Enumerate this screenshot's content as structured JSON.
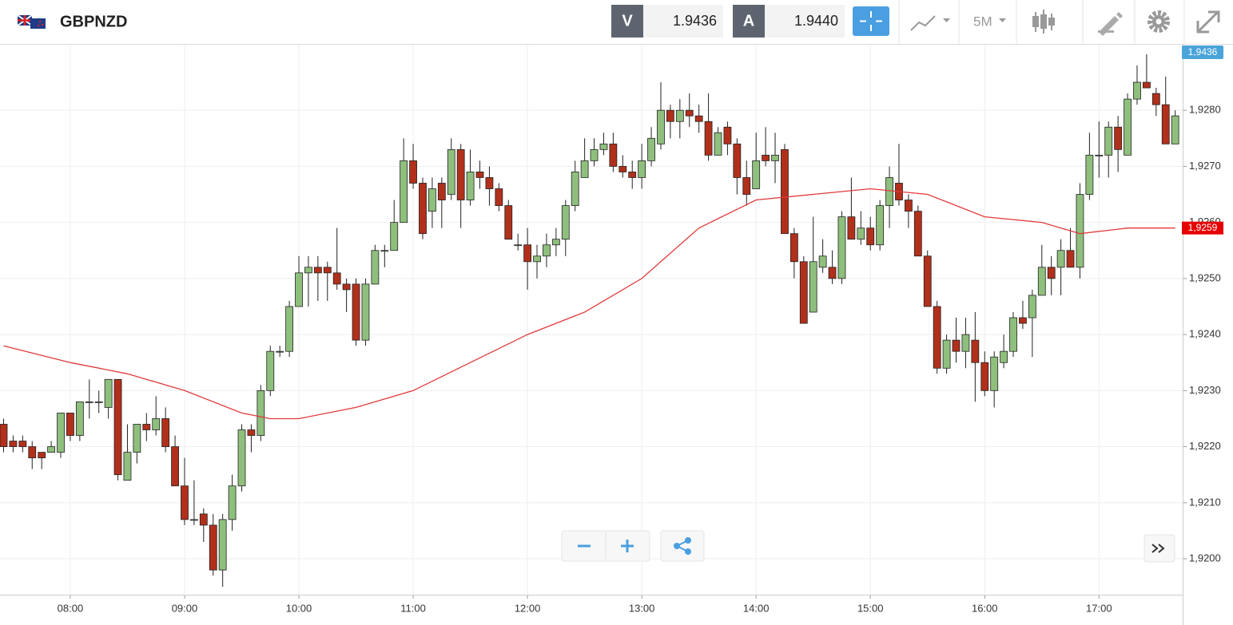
{
  "header": {
    "symbol": "GBPNZD",
    "bid_label": "V",
    "bid": "1.9436",
    "ask_label": "A",
    "ask": "1.9440",
    "timeframe": "5M"
  },
  "chart_data": {
    "type": "candlestick",
    "x": [
      "07:25",
      "07:30",
      "07:35",
      "07:40",
      "07:45",
      "07:50",
      "07:55",
      "08:00",
      "08:05",
      "08:10",
      "08:15",
      "08:20",
      "08:25",
      "08:30",
      "08:35",
      "08:40",
      "08:45",
      "08:50",
      "08:55",
      "09:00",
      "09:05",
      "09:10",
      "09:15",
      "09:20",
      "09:25",
      "09:30",
      "09:35",
      "09:40",
      "09:45",
      "09:50",
      "09:55",
      "10:00",
      "10:05",
      "10:10",
      "10:15",
      "10:20",
      "10:25",
      "10:30",
      "10:35",
      "10:40",
      "10:45",
      "10:50",
      "10:55",
      "11:00",
      "11:05",
      "11:10",
      "11:15",
      "11:20",
      "11:25",
      "11:30",
      "11:35",
      "11:40",
      "11:45",
      "11:50",
      "11:55",
      "12:00",
      "12:05",
      "12:10",
      "12:15",
      "12:20",
      "12:25",
      "12:30",
      "12:35",
      "12:40",
      "12:45",
      "12:50",
      "12:55",
      "13:00",
      "13:05",
      "13:10",
      "13:15",
      "13:20",
      "13:25",
      "13:30",
      "13:35",
      "13:40",
      "13:45",
      "13:50",
      "13:55",
      "14:00",
      "14:05",
      "14:10",
      "14:15",
      "14:20",
      "14:25",
      "14:30",
      "14:35",
      "14:40",
      "14:45",
      "14:50",
      "14:55",
      "15:00",
      "15:05",
      "15:10",
      "15:15",
      "15:20",
      "15:25",
      "15:30",
      "15:35",
      "15:40",
      "15:45",
      "15:50",
      "15:55",
      "16:00",
      "16:05",
      "16:10",
      "16:15",
      "16:20",
      "16:25",
      "16:30",
      "16:35",
      "16:40",
      "16:45",
      "16:50",
      "16:55",
      "17:00",
      "17:05",
      "17:10",
      "17:15",
      "17:20",
      "17:25",
      "17:30",
      "17:35",
      "17:40"
    ],
    "open": [
      1.9224,
      1.9221,
      1.9221,
      1.922,
      1.9219,
      1.9219,
      1.9219,
      1.9226,
      1.9222,
      1.9228,
      1.9228,
      1.9227,
      1.9232,
      1.9214,
      1.9219,
      1.9224,
      1.9223,
      1.9225,
      1.922,
      1.9213,
      1.9207,
      1.9208,
      1.9206,
      1.9198,
      1.9207,
      1.9213,
      1.9223,
      1.9222,
      1.923,
      1.9237,
      1.9237,
      1.9245,
      1.9251,
      1.9252,
      1.9252,
      1.9251,
      1.9249,
      1.9249,
      1.9239,
      1.9249,
      1.9255,
      1.9255,
      1.926,
      1.9271,
      1.9267,
      1.9262,
      1.9267,
      1.9265,
      1.9273,
      1.9264,
      1.9269,
      1.9268,
      1.9266,
      1.9263,
      1.9256,
      1.9256,
      1.9253,
      1.9254,
      1.9256,
      1.9257,
      1.9263,
      1.9268,
      1.9271,
      1.9273,
      1.9274,
      1.927,
      1.9269,
      1.9268,
      1.9271,
      1.9274,
      1.928,
      1.9278,
      1.928,
      1.9279,
      1.9278,
      1.9272,
      1.9277,
      1.9274,
      1.9268,
      1.9266,
      1.9272,
      1.9271,
      1.9273,
      1.9258,
      1.9253,
      1.9244,
      1.9252,
      1.9252,
      1.925,
      1.9261,
      1.9257,
      1.9259,
      1.9256,
      1.9263,
      1.9267,
      1.9264,
      1.9262,
      1.9254,
      1.9245,
      1.9234,
      1.9239,
      1.9237,
      1.9239,
      1.9235,
      1.923,
      1.9235,
      1.9237,
      1.9243,
      1.9243,
      1.9247,
      1.9252,
      1.9252,
      1.9255,
      1.9252,
      1.9265,
      1.9272,
      1.9272,
      1.9277,
      1.9272,
      1.9282,
      1.9285,
      1.9283,
      1.9281,
      1.9274
    ],
    "high": [
      1.9225,
      1.9222,
      1.9222,
      1.9221,
      1.9219,
      1.9221,
      1.9226,
      1.9226,
      1.9228,
      1.9232,
      1.923,
      1.9232,
      1.9232,
      1.9224,
      1.9224,
      1.9226,
      1.9229,
      1.9227,
      1.9222,
      1.9218,
      1.9214,
      1.9209,
      1.9208,
      1.9208,
      1.9215,
      1.9224,
      1.9224,
      1.9231,
      1.9238,
      1.9238,
      1.9246,
      1.9254,
      1.9254,
      1.9254,
      1.9253,
      1.9259,
      1.925,
      1.925,
      1.925,
      1.9256,
      1.9256,
      1.9264,
      1.9275,
      1.9274,
      1.9268,
      1.9268,
      1.9268,
      1.9275,
      1.9274,
      1.9273,
      1.9271,
      1.927,
      1.9267,
      1.9264,
      1.9258,
      1.9259,
      1.9256,
      1.9258,
      1.9259,
      1.9264,
      1.9271,
      1.9275,
      1.9275,
      1.9276,
      1.9276,
      1.9272,
      1.9271,
      1.9274,
      1.9277,
      1.9285,
      1.9281,
      1.9282,
      1.9283,
      1.9281,
      1.9283,
      1.9277,
      1.9278,
      1.9275,
      1.9271,
      1.9276,
      1.9277,
      1.9276,
      1.9274,
      1.9259,
      1.9254,
      1.9261,
      1.9257,
      1.9255,
      1.9262,
      1.9268,
      1.9262,
      1.9261,
      1.9264,
      1.927,
      1.9274,
      1.9265,
      1.9263,
      1.9255,
      1.9246,
      1.924,
      1.9243,
      1.9243,
      1.9244,
      1.9237,
      1.9237,
      1.924,
      1.9244,
      1.9246,
      1.9248,
      1.9256,
      1.9254,
      1.9257,
      1.9259,
      1.9267,
      1.9276,
      1.9278,
      1.9278,
      1.9279,
      1.9283,
      1.9288,
      1.929,
      1.9284,
      1.9286,
      1.928
    ],
    "low": [
      1.9219,
      1.9219,
      1.9219,
      1.9216,
      1.9216,
      1.9219,
      1.9218,
      1.9221,
      1.9221,
      1.9225,
      1.9226,
      1.9225,
      1.9214,
      1.9214,
      1.9217,
      1.9221,
      1.9222,
      1.9219,
      1.9213,
      1.9206,
      1.9206,
      1.9203,
      1.9197,
      1.9195,
      1.9205,
      1.9212,
      1.9219,
      1.9221,
      1.9229,
      1.9236,
      1.9236,
      1.9245,
      1.9245,
      1.9246,
      1.9246,
      1.9248,
      1.9244,
      1.9238,
      1.9238,
      1.9249,
      1.9252,
      1.9255,
      1.926,
      1.9266,
      1.9257,
      1.9259,
      1.9259,
      1.9264,
      1.9259,
      1.9263,
      1.9266,
      1.9263,
      1.9262,
      1.9257,
      1.9255,
      1.9248,
      1.925,
      1.9252,
      1.9254,
      1.9254,
      1.9262,
      1.9268,
      1.927,
      1.9272,
      1.9269,
      1.9268,
      1.9266,
      1.9266,
      1.927,
      1.9273,
      1.9275,
      1.9275,
      1.9277,
      1.9276,
      1.9271,
      1.9272,
      1.9272,
      1.9265,
      1.9263,
      1.9266,
      1.927,
      1.9267,
      1.9258,
      1.925,
      1.9242,
      1.9244,
      1.9251,
      1.9249,
      1.9249,
      1.9257,
      1.9256,
      1.9255,
      1.9255,
      1.9259,
      1.9263,
      1.9259,
      1.9254,
      1.9245,
      1.9233,
      1.9233,
      1.9235,
      1.9234,
      1.9228,
      1.9229,
      1.9227,
      1.9234,
      1.9236,
      1.9241,
      1.9236,
      1.9247,
      1.9247,
      1.9247,
      1.9252,
      1.925,
      1.9264,
      1.9268,
      1.9268,
      1.9269,
      1.9272,
      1.9281,
      1.9284,
      1.9279,
      1.9274,
      1.9274
    ],
    "close": [
      1.922,
      1.922,
      1.922,
      1.9218,
      1.9218,
      1.922,
      1.9226,
      1.9222,
      1.9228,
      1.9228,
      1.9228,
      1.9232,
      1.9215,
      1.9219,
      1.9224,
      1.9223,
      1.9225,
      1.922,
      1.9213,
      1.9207,
      1.9207,
      1.9206,
      1.9198,
      1.9207,
      1.9213,
      1.9223,
      1.9222,
      1.923,
      1.9237,
      1.9237,
      1.9245,
      1.9251,
      1.9252,
      1.9251,
      1.9251,
      1.9249,
      1.9248,
      1.9239,
      1.9249,
      1.9255,
      1.9255,
      1.926,
      1.9271,
      1.9267,
      1.9258,
      1.9266,
      1.9264,
      1.9273,
      1.9264,
      1.9269,
      1.9268,
      1.9266,
      1.9263,
      1.9257,
      1.9256,
      1.9253,
      1.9254,
      1.9256,
      1.9257,
      1.9263,
      1.9269,
      1.9271,
      1.9273,
      1.9274,
      1.927,
      1.9269,
      1.9268,
      1.9271,
      1.9275,
      1.928,
      1.9278,
      1.928,
      1.9279,
      1.9278,
      1.9272,
      1.9276,
      1.9274,
      1.9268,
      1.9265,
      1.9271,
      1.9271,
      1.9272,
      1.9258,
      1.9253,
      1.9242,
      1.9253,
      1.9254,
      1.925,
      1.9261,
      1.9257,
      1.9259,
      1.9256,
      1.9263,
      1.9268,
      1.9264,
      1.9262,
      1.9254,
      1.9245,
      1.9234,
      1.9239,
      1.9237,
      1.924,
      1.9235,
      1.923,
      1.9236,
      1.9237,
      1.9243,
      1.9242,
      1.9247,
      1.9252,
      1.925,
      1.9255,
      1.9252,
      1.9265,
      1.9272,
      1.9272,
      1.9277,
      1.9273,
      1.9282,
      1.9285,
      1.9284,
      1.9281,
      1.9274,
      1.9279
    ],
    "up_color": "#8fbf7d",
    "down_color": "#b1301b",
    "moving_average": {
      "color": "#e03a3a",
      "x": [
        "07:25",
        "08:00",
        "08:30",
        "09:00",
        "09:30",
        "09:45",
        "10:00",
        "10:30",
        "11:00",
        "11:30",
        "12:00",
        "12:30",
        "13:00",
        "13:30",
        "14:00",
        "14:30",
        "15:00",
        "15:30",
        "16:00",
        "16:30",
        "16:50",
        "17:15",
        "17:40"
      ],
      "values": [
        1.9238,
        1.9235,
        1.9233,
        1.923,
        1.9226,
        1.9225,
        1.9225,
        1.9227,
        1.923,
        1.9235,
        1.924,
        1.9244,
        1.925,
        1.9259,
        1.9264,
        1.9265,
        1.9266,
        1.9265,
        1.9261,
        1.926,
        1.9258,
        1.9259,
        1.9259
      ],
      "value_label": "1,9259"
    },
    "price_tag": "1,9436",
    "ylim": [
      1.91936,
      1.92917
    ],
    "yticks": [
      {
        "value": 1.92,
        "label": "1,9200"
      },
      {
        "value": 1.921,
        "label": "1,9210"
      },
      {
        "value": 1.922,
        "label": "1,9220"
      },
      {
        "value": 1.923,
        "label": "1,9230"
      },
      {
        "value": 1.924,
        "label": "1,9240"
      },
      {
        "value": 1.925,
        "label": "1,9250"
      },
      {
        "value": 1.926,
        "label": "1,9260"
      },
      {
        "value": 1.927,
        "label": "1,9270"
      },
      {
        "value": 1.928,
        "label": "1,9280"
      }
    ],
    "xticks": [
      "08:00",
      "09:00",
      "10:00",
      "11:00",
      "12:00",
      "13:00",
      "14:00",
      "15:00",
      "16:00",
      "17:00"
    ],
    "grid": true
  }
}
